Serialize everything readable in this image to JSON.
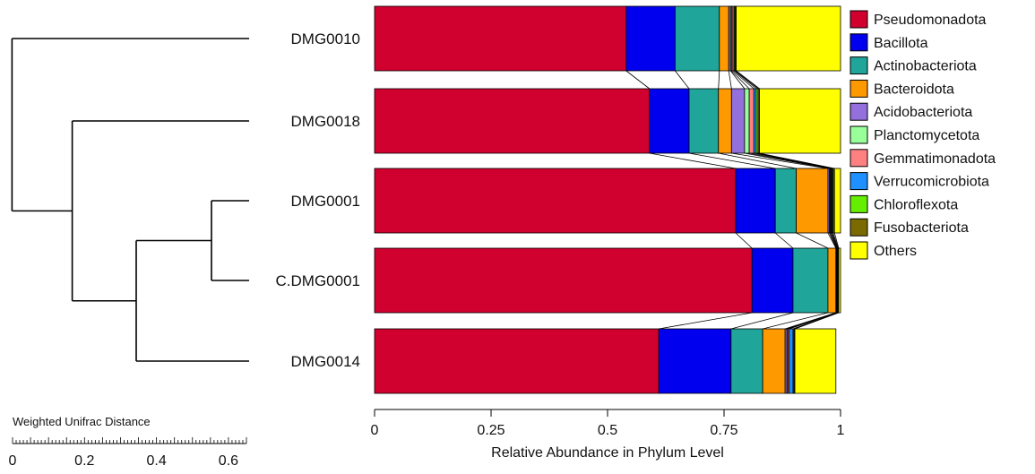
{
  "chart_data": {
    "type": "bar",
    "orientation": "horizontal",
    "stacked": true,
    "xlabel": "Relative Abundance in Phylum Level",
    "xlim": [
      0,
      1
    ],
    "xticks": [
      "0",
      "0.25",
      "0.5",
      "0.75",
      "1"
    ],
    "categories": [
      "DMG0010",
      "DMG0018",
      "DMG0001",
      "C.DMG0001",
      "DMG0014"
    ],
    "legend_position": "right",
    "series": [
      {
        "name": "Pseudomonadota",
        "color": "#d0002f",
        "values": [
          0.54,
          0.59,
          0.775,
          0.81,
          0.61
        ]
      },
      {
        "name": "Bacillota",
        "color": "#0000ee",
        "values": [
          0.105,
          0.085,
          0.085,
          0.088,
          0.155
        ]
      },
      {
        "name": "Actinobacteriota",
        "color": "#20a59a",
        "values": [
          0.095,
          0.063,
          0.045,
          0.075,
          0.068
        ]
      },
      {
        "name": "Bacteroidota",
        "color": "#ff9900",
        "values": [
          0.02,
          0.028,
          0.068,
          0.017,
          0.048
        ]
      },
      {
        "name": "Acidobacteriota",
        "color": "#9370db",
        "values": [
          0.004,
          0.028,
          0.003,
          0.001,
          0.004
        ]
      },
      {
        "name": "Planctomycetota",
        "color": "#99ff99",
        "values": [
          0.002,
          0.01,
          0.002,
          0.001,
          0.002
        ]
      },
      {
        "name": "Gemmatimonadota",
        "color": "#ff8080",
        "values": [
          0.003,
          0.01,
          0.002,
          0.001,
          0.003
        ]
      },
      {
        "name": "Verrucomicrobiota",
        "color": "#1e90ff",
        "values": [
          0.003,
          0.005,
          0.002,
          0.001,
          0.008
        ]
      },
      {
        "name": "Chloroflexota",
        "color": "#66ee00",
        "values": [
          0.002,
          0.004,
          0.002,
          0.001,
          0.002
        ]
      },
      {
        "name": "Fusobacteriota",
        "color": "#7a6a00",
        "values": [
          0.002,
          0.003,
          0.003,
          0.001,
          0.002
        ]
      },
      {
        "name": "Others",
        "color": "#ffff00",
        "values": [
          0.224,
          0.174,
          0.013,
          0.004,
          0.088
        ]
      }
    ],
    "dendrogram": {
      "title": "Weighted Unifrac Distance",
      "scale_ticks": [
        "0",
        "0.2",
        "0.4",
        "0.6"
      ],
      "scale_range": [
        0,
        0.65
      ],
      "merges": [
        {
          "members": [
            "DMG0001",
            "C.DMG0001"
          ],
          "height": 0.1
        },
        {
          "members": [
            "DMG0001",
            "C.DMG0001",
            "DMG0014"
          ],
          "height": 0.3
        },
        {
          "members": [
            "DMG0018",
            "DMG0001",
            "C.DMG0001",
            "DMG0014"
          ],
          "height": 0.47
        },
        {
          "members": [
            "DMG0010",
            "DMG0018",
            "DMG0001",
            "C.DMG0001",
            "DMG0014"
          ],
          "height": 0.63
        }
      ]
    }
  }
}
